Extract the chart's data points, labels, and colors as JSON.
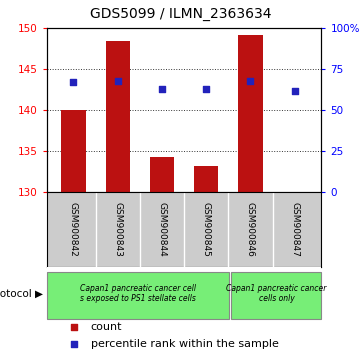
{
  "title": "GDS5099 / ILMN_2363634",
  "samples": [
    "GSM900842",
    "GSM900843",
    "GSM900844",
    "GSM900845",
    "GSM900846",
    "GSM900847"
  ],
  "bar_values": [
    140.1,
    148.5,
    134.3,
    133.2,
    149.2,
    130.1
  ],
  "bar_bottom": 130,
  "percentile_values": [
    67,
    68,
    63,
    63,
    68,
    62
  ],
  "ylim_left": [
    130,
    150
  ],
  "ylim_right": [
    0,
    100
  ],
  "yticks_left": [
    130,
    135,
    140,
    145,
    150
  ],
  "yticks_right": [
    0,
    25,
    50,
    75,
    100
  ],
  "ytick_labels_right": [
    "0",
    "25",
    "50",
    "75",
    "100%"
  ],
  "bar_color": "#bb1111",
  "percentile_color": "#2222bb",
  "group1_count": 4,
  "group2_count": 2,
  "group1_label": "Capan1 pancreatic cancer cell\ns exposed to PS1 stellate cells",
  "group2_label": "Capan1 pancreatic cancer\ncells only",
  "group_color": "#77ee77",
  "protocol_label": "protocol",
  "legend_count_label": "count",
  "legend_percentile_label": "percentile rank within the sample",
  "bar_width": 0.55,
  "bg_color": "#ffffff",
  "sample_label_bg": "#cccccc",
  "title_fontsize": 10
}
